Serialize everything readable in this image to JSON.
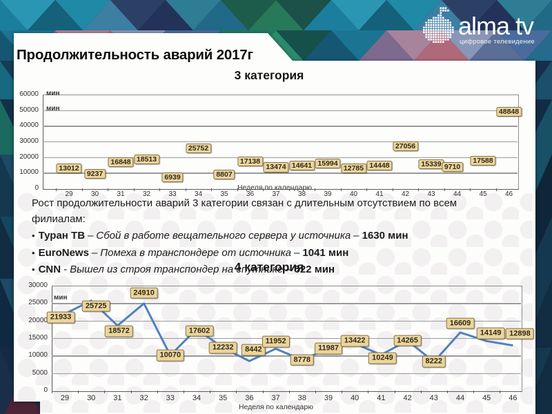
{
  "logo": {
    "brand": "alma tv",
    "tagline": "цифровое телевидение"
  },
  "slide": {
    "title": "Продолжительность аварий 2017г"
  },
  "notes": {
    "intro_lines": [
      "Рост продолжительности аварий 3 категории связан с длительным отсутствием по всем",
      "филиалам:"
    ],
    "bullet_marker": "•",
    "bullets": [
      {
        "name": "Туран ТВ",
        "sep": "–",
        "desc": "Сбой в работе вещательного сервера у источника",
        "sep2": "–",
        "value": "1630 мин"
      },
      {
        "name": "EuroNews",
        "sep": "–",
        "desc": "Помеха в транспондере от источника",
        "sep2": "–",
        "value": "1041 мин"
      },
      {
        "name": "CNN",
        "sep": "-",
        "desc": "Вышел из строя транспондер на спутнике",
        "sep2": "–",
        "value": "522 мин"
      }
    ]
  },
  "chart_data": [
    {
      "type": "scatter",
      "title": "3 категория",
      "x": [
        29,
        30,
        31,
        32,
        33,
        34,
        35,
        36,
        37,
        38,
        39,
        40,
        41,
        42,
        43,
        44,
        45,
        46
      ],
      "values": [
        13012,
        9237,
        16848,
        18513,
        6939,
        25752,
        8807,
        17138,
        13474,
        14641,
        15994,
        12785,
        14448,
        27056,
        15339,
        9710,
        17588,
        48848
      ],
      "data_labels_shown": true,
      "line_visible": false,
      "xlabel": "Неделя по календарю",
      "ylabel": "мин",
      "unit_labels": [
        "мин",
        "мин"
      ],
      "ylim": [
        0,
        60000
      ],
      "ytick_step": 10000,
      "grid": true,
      "legend": false
    },
    {
      "type": "line",
      "title": "4 категория",
      "x": [
        29,
        30,
        31,
        32,
        33,
        34,
        35,
        36,
        37,
        38,
        39,
        40,
        41,
        42,
        43,
        44,
        45,
        46
      ],
      "values": [
        21933,
        25725,
        18572,
        24910,
        10070,
        17602,
        12232,
        8442,
        11952,
        8778,
        11987,
        13422,
        10249,
        14265,
        8222,
        16609,
        14149,
        12898
      ],
      "data_labels_shown": true,
      "line_visible": true,
      "xlabel": "Неделя по календарю",
      "ylabel": "мин",
      "unit_labels": [
        "мин"
      ],
      "ylim": [
        0,
        30000
      ],
      "ytick_step": 5000,
      "grid": true,
      "legend": false
    }
  ],
  "theme": {
    "label_box_bg": "#ead59c",
    "label_box_border": "#86704a",
    "line_color": "#4f81bd",
    "grid_color": "#9a9a9a",
    "axis_color": "#5a5a5a",
    "panel_bg": "#fdfdfc",
    "accent_maroon": "#4d2336",
    "accent_teal": "#2a96b4"
  }
}
